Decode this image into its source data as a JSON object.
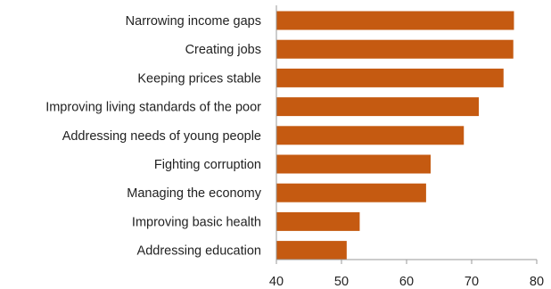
{
  "chart_data": {
    "type": "bar",
    "orientation": "horizontal",
    "categories": [
      "Narrowing income gaps",
      "Creating jobs",
      "Keeping prices stable",
      "Improving living standards of the poor",
      "Addressing needs of young people",
      "Fighting corruption",
      "Managing the economy",
      "Improving basic health",
      "Addressing education"
    ],
    "values": [
      76.5,
      76.4,
      74.9,
      71.1,
      68.8,
      63.7,
      63.0,
      52.8,
      50.8
    ],
    "xlim": [
      40,
      80
    ],
    "xticks": [
      40,
      50,
      60,
      70,
      80
    ],
    "title": "",
    "xlabel": "",
    "ylabel": "",
    "grid": false,
    "bar_color": "#C55A11"
  }
}
